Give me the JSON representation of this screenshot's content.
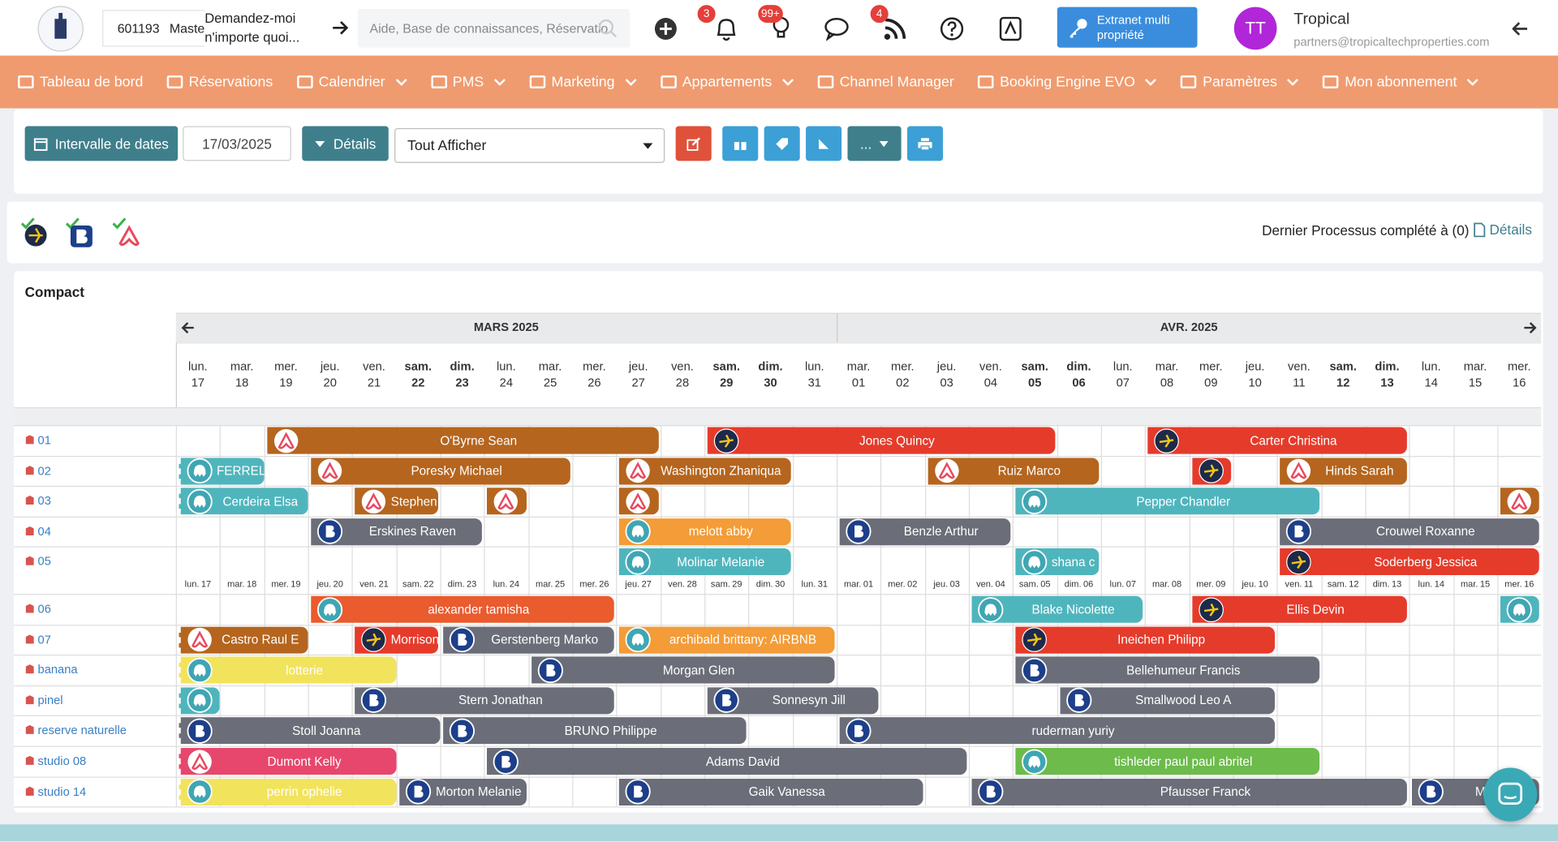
{
  "header": {
    "account_id": "601193",
    "account_name": "Maste",
    "ai_prompt": "Demandez-moi n'importe quoi...",
    "search_placeholder": "Aide, Base de connaissances, Réservatio",
    "badges": {
      "notifications": "3",
      "tips": "99+",
      "feeds": "4"
    },
    "extranet_button": "Extranet multi propriété",
    "user": {
      "initials": "TT",
      "name": "Tropical",
      "email": "partners@tropicaltechproperties.com"
    }
  },
  "nav": [
    {
      "label": "Tableau de bord",
      "dropdown": false
    },
    {
      "label": "Réservations",
      "dropdown": false
    },
    {
      "label": "Calendrier",
      "dropdown": true
    },
    {
      "label": "PMS",
      "dropdown": true
    },
    {
      "label": "Marketing",
      "dropdown": true
    },
    {
      "label": "Appartements",
      "dropdown": true
    },
    {
      "label": "Channel Manager",
      "dropdown": false
    },
    {
      "label": "Booking Engine EVO",
      "dropdown": true
    },
    {
      "label": "Paramètres",
      "dropdown": true
    },
    {
      "label": "Mon abonnement",
      "dropdown": true
    }
  ],
  "toolbar": {
    "date_range_button": "Intervalle de dates",
    "date": "17/03/2025",
    "details_button": "Détails",
    "filter": "Tout Afficher",
    "more": "..."
  },
  "sync": {
    "status": "Dernier Processus complété à (0)",
    "details": "Détails"
  },
  "calendar": {
    "title": "Compact",
    "months": [
      {
        "label": "MARS 2025",
        "first_day_index": 0,
        "days": 15
      },
      {
        "label": "AVR. 2025",
        "first_day_index": 15,
        "days": 16
      }
    ],
    "days": [
      {
        "weekday": "lun.",
        "day": "17",
        "weekend": false
      },
      {
        "weekday": "mar.",
        "day": "18",
        "weekend": false
      },
      {
        "weekday": "mer.",
        "day": "19",
        "weekend": false
      },
      {
        "weekday": "jeu.",
        "day": "20",
        "weekend": false
      },
      {
        "weekday": "ven.",
        "day": "21",
        "weekend": false
      },
      {
        "weekday": "sam.",
        "day": "22",
        "weekend": true
      },
      {
        "weekday": "dim.",
        "day": "23",
        "weekend": true
      },
      {
        "weekday": "lun.",
        "day": "24",
        "weekend": false
      },
      {
        "weekday": "mar.",
        "day": "25",
        "weekend": false
      },
      {
        "weekday": "mer.",
        "day": "26",
        "weekend": false
      },
      {
        "weekday": "jeu.",
        "day": "27",
        "weekend": false
      },
      {
        "weekday": "ven.",
        "day": "28",
        "weekend": false
      },
      {
        "weekday": "sam.",
        "day": "29",
        "weekend": true
      },
      {
        "weekday": "dim.",
        "day": "30",
        "weekend": true
      },
      {
        "weekday": "lun.",
        "day": "31",
        "weekend": false
      },
      {
        "weekday": "mar.",
        "day": "01",
        "weekend": false
      },
      {
        "weekday": "mer.",
        "day": "02",
        "weekend": false
      },
      {
        "weekday": "jeu.",
        "day": "03",
        "weekend": false
      },
      {
        "weekday": "ven.",
        "day": "04",
        "weekend": false
      },
      {
        "weekday": "sam.",
        "day": "05",
        "weekend": true
      },
      {
        "weekday": "dim.",
        "day": "06",
        "weekend": true
      },
      {
        "weekday": "lun.",
        "day": "07",
        "weekend": false
      },
      {
        "weekday": "mar.",
        "day": "08",
        "weekend": false
      },
      {
        "weekday": "mer.",
        "day": "09",
        "weekend": false
      },
      {
        "weekday": "jeu.",
        "day": "10",
        "weekend": false
      },
      {
        "weekday": "ven.",
        "day": "11",
        "weekend": false
      },
      {
        "weekday": "sam.",
        "day": "12",
        "weekend": true
      },
      {
        "weekday": "dim.",
        "day": "13",
        "weekend": true
      },
      {
        "weekday": "lun.",
        "day": "14",
        "weekend": false
      },
      {
        "weekday": "mar.",
        "day": "15",
        "weekend": false
      },
      {
        "weekday": "mer.",
        "day": "16",
        "weekend": false
      }
    ],
    "rooms": [
      {
        "name": "01",
        "bookings": [
          {
            "name": "O'Byrne Sean",
            "channel": "airbnb",
            "color": "#b5651e",
            "start": 2,
            "nights": 9
          },
          {
            "name": "Jones Quincy",
            "channel": "expedia",
            "color": "#e53b2b",
            "start": 12,
            "nights": 8
          },
          {
            "name": "Carter Christina",
            "channel": "expedia",
            "color": "#e53b2b",
            "start": 22,
            "nights": 6
          }
        ]
      },
      {
        "name": "02",
        "bookings": [
          {
            "name": "FERREL",
            "channel": "direct",
            "color": "#4fb5bd",
            "start": 0,
            "nights": 2
          },
          {
            "name": "Poresky Michael",
            "channel": "airbnb",
            "color": "#b5651e",
            "start": 3,
            "nights": 6
          },
          {
            "name": "Washington Zhaniqua",
            "channel": "airbnb",
            "color": "#b5651e",
            "start": 10,
            "nights": 4
          },
          {
            "name": "Ruiz Marco",
            "channel": "airbnb",
            "color": "#b5651e",
            "start": 17,
            "nights": 4
          },
          {
            "name": null,
            "channel": "expedia",
            "color": "#e53b2b",
            "start": 23,
            "nights": 1
          },
          {
            "name": "Hinds Sarah",
            "channel": "airbnb",
            "color": "#b5651e",
            "start": 25,
            "nights": 3
          }
        ]
      },
      {
        "name": "03",
        "bookings": [
          {
            "name": "Cerdeira Elsa",
            "channel": "direct",
            "color": "#4fb5bd",
            "start": 0,
            "nights": 3
          },
          {
            "name": "Stephen",
            "channel": "airbnb",
            "color": "#b5651e",
            "start": 4,
            "nights": 2
          },
          {
            "name": null,
            "channel": "airbnb",
            "color": "#b5651e",
            "start": 7,
            "nights": 1
          },
          {
            "name": null,
            "channel": "airbnb",
            "color": "#b5651e",
            "start": 10,
            "nights": 1
          },
          {
            "name": "Pepper Chandler",
            "channel": "direct",
            "color": "#4fb5bd",
            "start": 19,
            "nights": 7
          },
          {
            "name": null,
            "channel": "airbnb",
            "color": "#b5651e",
            "start": 30,
            "nights": 1
          }
        ]
      },
      {
        "name": "04",
        "bookings": [
          {
            "name": "Erskines Raven",
            "channel": "booking",
            "color": "#6b6e78",
            "start": 3,
            "nights": 4
          },
          {
            "name": "melott abby",
            "channel": "direct",
            "color": "#f39c38",
            "start": 10,
            "nights": 4
          },
          {
            "name": "Benzle Arthur",
            "channel": "booking",
            "color": "#6b6e78",
            "start": 15,
            "nights": 4
          },
          {
            "name": "Crouwel Roxanne",
            "channel": "booking",
            "color": "#6b6e78",
            "start": 25,
            "nights": 6
          }
        ]
      },
      {
        "name": "05",
        "bookings": [
          {
            "name": "Molinar Melanie",
            "channel": "direct",
            "color": "#4fb5bd",
            "start": 10,
            "nights": 4
          },
          {
            "name": "shana c",
            "channel": "direct",
            "color": "#4fb5bd",
            "start": 19,
            "nights": 2
          },
          {
            "name": "Soderberg Jessica",
            "channel": "expedia",
            "color": "#e53b2b",
            "start": 25,
            "nights": 6
          }
        ]
      },
      {
        "name": "06",
        "bookings": [
          {
            "name": "alexander tamisha",
            "channel": "direct",
            "color": "#ea5b2e",
            "start": 3,
            "nights": 7
          },
          {
            "name": "Blake Nicolette",
            "channel": "direct",
            "color": "#4fb5bd",
            "start": 18,
            "nights": 4
          },
          {
            "name": "Ellis Devin",
            "channel": "expedia",
            "color": "#e53b2b",
            "start": 23,
            "nights": 5
          },
          {
            "name": null,
            "channel": "direct",
            "color": "#4fb5bd",
            "start": 30,
            "nights": 1
          }
        ]
      },
      {
        "name": "07",
        "bookings": [
          {
            "name": "Castro Raul E",
            "channel": "airbnb",
            "color": "#b5651e",
            "start": 0,
            "nights": 3
          },
          {
            "name": "Morrison",
            "channel": "expedia",
            "color": "#e53b2b",
            "start": 4,
            "nights": 2
          },
          {
            "name": "Gerstenberg Marko",
            "channel": "booking",
            "color": "#6b6e78",
            "start": 6,
            "nights": 4
          },
          {
            "name": "archibald brittany: AIRBNB",
            "channel": "direct",
            "color": "#f39c38",
            "start": 10,
            "nights": 5
          },
          {
            "name": "Ineichen Philipp",
            "channel": "expedia",
            "color": "#e53b2b",
            "start": 19,
            "nights": 6
          }
        ]
      },
      {
        "name": "banana",
        "bookings": [
          {
            "name": "lotterie",
            "channel": "direct",
            "color": "#f2e35c",
            "start": 0,
            "nights": 5
          },
          {
            "name": "Morgan Glen",
            "channel": "booking",
            "color": "#6b6e78",
            "start": 8,
            "nights": 7
          },
          {
            "name": "Bellehumeur Francis",
            "channel": "booking",
            "color": "#6b6e78",
            "start": 19,
            "nights": 7
          }
        ]
      },
      {
        "name": "pinel",
        "bookings": [
          {
            "name": null,
            "channel": "direct",
            "color": "#4fb5bd",
            "start": 0,
            "nights": 1
          },
          {
            "name": "Stern Jonathan",
            "channel": "booking",
            "color": "#6b6e78",
            "start": 4,
            "nights": 6
          },
          {
            "name": "Sonnesyn Jill",
            "channel": "booking",
            "color": "#6b6e78",
            "start": 12,
            "nights": 4
          },
          {
            "name": "Smallwood Leo A",
            "channel": "booking",
            "color": "#6b6e78",
            "start": 20,
            "nights": 5
          }
        ]
      },
      {
        "name": "reserve naturelle",
        "bookings": [
          {
            "name": "Stoll Joanna",
            "channel": "booking",
            "color": "#6b6e78",
            "start": 0,
            "nights": 6
          },
          {
            "name": "BRUNO Philippe",
            "channel": "booking",
            "color": "#6b6e78",
            "start": 6,
            "nights": 7
          },
          {
            "name": "ruderman yuriy",
            "channel": "booking",
            "color": "#6b6e78",
            "start": 15,
            "nights": 10
          }
        ]
      },
      {
        "name": "studio 08",
        "bookings": [
          {
            "name": "Dumont Kelly",
            "channel": "airbnb",
            "color": "#e7476d",
            "start": 0,
            "nights": 5
          },
          {
            "name": "Adams David",
            "channel": "booking",
            "color": "#6b6e78",
            "start": 7,
            "nights": 11
          },
          {
            "name": "tishleder paul paul abritel",
            "channel": "direct",
            "color": "#6cbb4b",
            "start": 19,
            "nights": 7
          }
        ]
      },
      {
        "name": "studio 14",
        "bookings": [
          {
            "name": "perrin ophelie",
            "channel": "direct",
            "color": "#f2e35c",
            "start": 0,
            "nights": 5
          },
          {
            "name": "Morton Melanie",
            "channel": "booking",
            "color": "#6b6e78",
            "start": 5,
            "nights": 3
          },
          {
            "name": "Gaik Vanessa",
            "channel": "booking",
            "color": "#6b6e78",
            "start": 10,
            "nights": 7
          },
          {
            "name": "Pfausser Franck",
            "channel": "booking",
            "color": "#6b6e78",
            "start": 18,
            "nights": 10
          },
          {
            "name": "MILIU",
            "channel": "booking",
            "color": "#6b6e78",
            "start": 28,
            "nights": 3
          }
        ]
      }
    ]
  }
}
